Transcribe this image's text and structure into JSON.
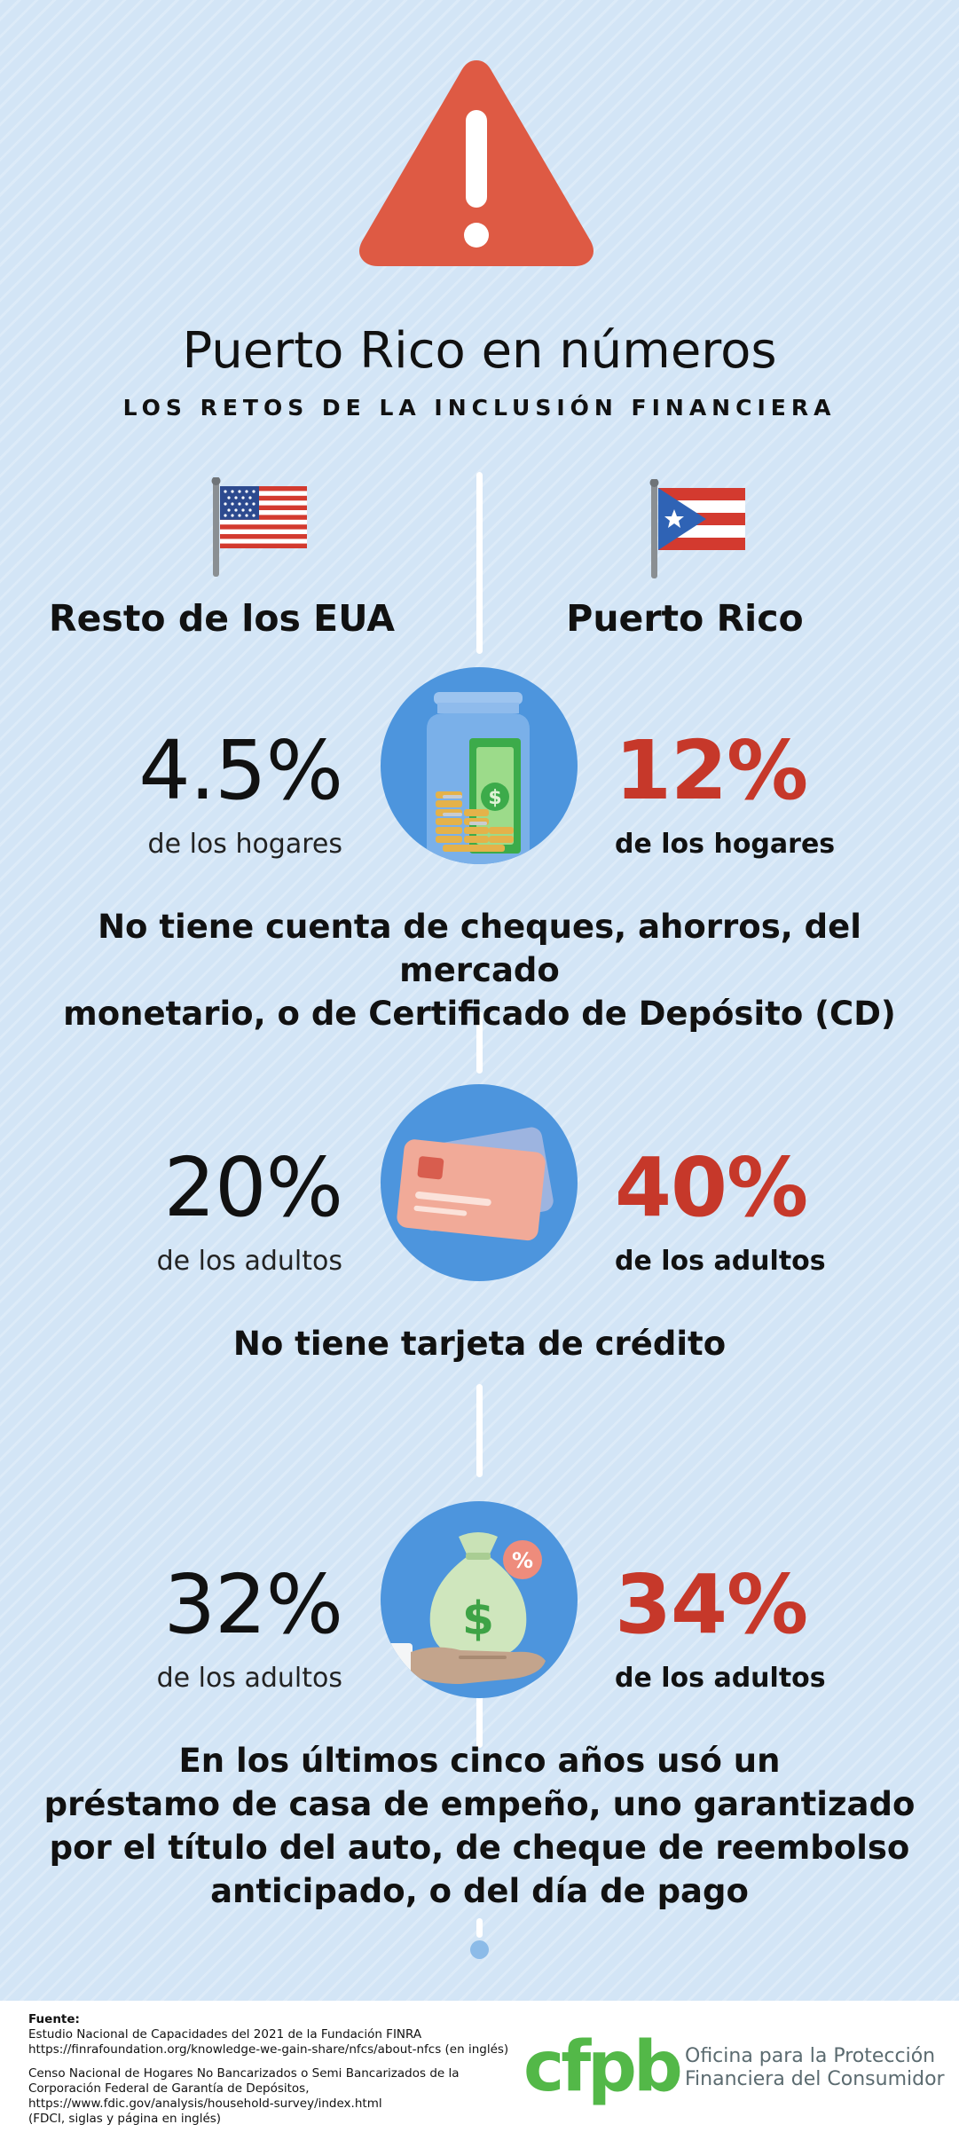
{
  "header": {
    "title": "Puerto Rico en números",
    "subtitle": "LOS RETOS DE LA INCLUSIÓN FINANCIERA"
  },
  "columns": {
    "left": "Resto de los EUA",
    "right": "Puerto Rico"
  },
  "stats": [
    {
      "icon": "money-jar-icon",
      "left_value": "4.5%",
      "left_unit": "de los hogares",
      "right_value": "12%",
      "right_unit": "de los hogares",
      "description_lines": [
        "No tiene cuenta de cheques, ahorros, del mercado",
        "monetario, o de Certificado de Depósito (CD)"
      ]
    },
    {
      "icon": "credit-card-icon",
      "left_value": "20%",
      "left_unit": "de los adultos",
      "right_value": "40%",
      "right_unit": "de los adultos",
      "description_lines": [
        "No tiene tarjeta de crédito"
      ]
    },
    {
      "icon": "money-bag-hand-icon",
      "left_value": "32%",
      "left_unit": "de los adultos",
      "right_value": "34%",
      "right_unit": "de los adultos",
      "description_lines": [
        "En los últimos cinco años usó un",
        "préstamo de casa de empeño, uno garantizado",
        "por el título del auto, de cheque de reembolso",
        "anticipado, o del día de pago"
      ]
    }
  ],
  "icon_glyphs": {
    "jar_coin": "$",
    "bag_dollar": "$",
    "bag_percent": "%"
  },
  "footer": {
    "source_label": "Fuente:",
    "source1_lines": [
      "Estudio Nacional de Capacidades del 2021 de la Fundación FINRA",
      "https://finrafoundation.org/knowledge-we-gain-share/nfcs/about-nfcs (en inglés)"
    ],
    "source2_lines": [
      "Censo Nacional de Hogares No Bancarizados o Semi Bancarizados de la",
      "Corporación Federal de Garantía de Depósitos,",
      "https://www.fdic.gov/analysis/household-survey/index.html",
      "(FDCI, siglas y página en inglés)"
    ],
    "logo_text": "cfpb",
    "agency_lines": [
      "Oficina para la Protección",
      "Financiera del Consumidor"
    ]
  },
  "colors": {
    "background": "#d3e5f6",
    "warning": "#de5a44",
    "accent_red": "#c6382a",
    "icon_circle": "#4d95dd",
    "cfpb_green": "#53b848"
  }
}
